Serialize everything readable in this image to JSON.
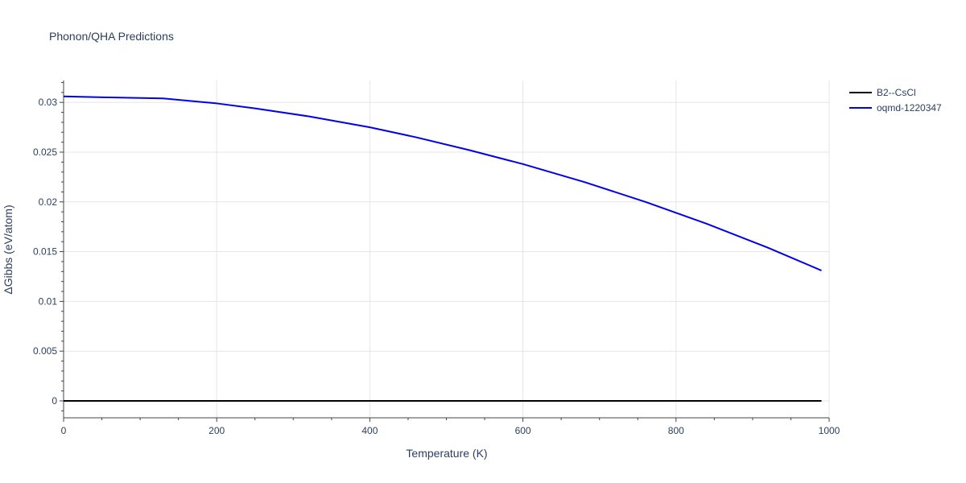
{
  "chart_data": {
    "type": "line",
    "title": "Phonon/QHA Predictions",
    "xlabel": "Temperature (K)",
    "ylabel": "ΔGibbs (eV/atom)",
    "xlim": [
      0,
      1000
    ],
    "ylim": [
      -0.0017,
      0.0322
    ],
    "xticks": [
      0,
      200,
      400,
      600,
      800,
      1000
    ],
    "xtick_labels": [
      "0",
      "200",
      "400",
      "600",
      "800",
      "1000"
    ],
    "yticks": [
      0,
      0.005,
      0.01,
      0.015,
      0.02,
      0.025,
      0.03
    ],
    "ytick_labels": [
      "0",
      "0.005",
      "0.01",
      "0.015",
      "0.02",
      "0.025",
      "0.03"
    ],
    "grid": true,
    "legend_position": "top-right",
    "series": [
      {
        "name": "B2--CsCl",
        "color": "#000000",
        "x": [
          0,
          990
        ],
        "y": [
          0,
          0
        ]
      },
      {
        "name": "oqmd-1220347",
        "color": "#0000ee",
        "x": [
          0,
          60,
          130,
          200,
          250,
          320,
          400,
          460,
          530,
          600,
          680,
          760,
          840,
          920,
          990
        ],
        "y": [
          0.0306,
          0.0305,
          0.0304,
          0.0299,
          0.0294,
          0.0286,
          0.0275,
          0.0265,
          0.0252,
          0.0238,
          0.022,
          0.02,
          0.0178,
          0.0154,
          0.0131
        ]
      }
    ]
  }
}
